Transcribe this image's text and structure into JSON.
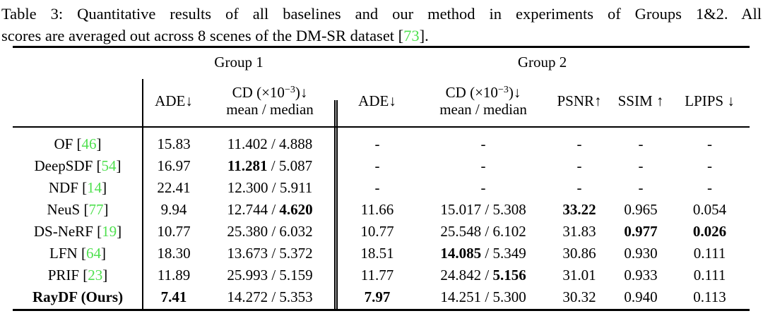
{
  "caption": {
    "line1": "Table 3: Quantitative results of all baselines and our method in experiments of Groups 1&2. All",
    "line2_prefix": "scores are averaged out across 8 scenes of the DM-SR dataset [",
    "cite": "73",
    "line2_suffix": "]."
  },
  "colors": {
    "citation_green": "#50e050",
    "text_black": "#000000"
  },
  "table": {
    "groups": [
      "Group 1",
      "Group 2"
    ],
    "headers": {
      "ade": "ADE↓",
      "cd_line1_prefix": "CD (×10",
      "cd_sup": "−3",
      "cd_line1_suffix": ")↓",
      "cd_line2": "mean / median",
      "psnr": "PSNR↑",
      "ssim": "SSIM ↑",
      "lpips": "LPIPS ↓"
    },
    "columns": [
      "ade1",
      "cd1",
      "ade2",
      "cd2",
      "psnr",
      "ssim",
      "lpips"
    ],
    "rows": [
      {
        "method": {
          "name": "OF",
          "cite": "46",
          "bold": false
        },
        "cells": {
          "ade1": [
            {
              "t": "15.83"
            }
          ],
          "cd1": [
            {
              "t": "11.402"
            },
            {
              "t": " / "
            },
            {
              "t": "4.888"
            }
          ],
          "ade2": [
            {
              "t": "-"
            }
          ],
          "cd2": [
            {
              "t": "-"
            }
          ],
          "psnr": [
            {
              "t": "-"
            }
          ],
          "ssim": [
            {
              "t": "-"
            }
          ],
          "lpips": [
            {
              "t": "-"
            }
          ]
        }
      },
      {
        "method": {
          "name": "DeepSDF",
          "cite": "54",
          "bold": false
        },
        "cells": {
          "ade1": [
            {
              "t": "16.97"
            }
          ],
          "cd1": [
            {
              "t": "11.281",
              "b": true
            },
            {
              "t": " / "
            },
            {
              "t": "5.087"
            }
          ],
          "ade2": [
            {
              "t": "-"
            }
          ],
          "cd2": [
            {
              "t": "-"
            }
          ],
          "psnr": [
            {
              "t": "-"
            }
          ],
          "ssim": [
            {
              "t": "-"
            }
          ],
          "lpips": [
            {
              "t": "-"
            }
          ]
        }
      },
      {
        "method": {
          "name": "NDF",
          "cite": "14",
          "bold": false
        },
        "cells": {
          "ade1": [
            {
              "t": "22.41"
            }
          ],
          "cd1": [
            {
              "t": "12.300"
            },
            {
              "t": " / "
            },
            {
              "t": "5.911"
            }
          ],
          "ade2": [
            {
              "t": "-"
            }
          ],
          "cd2": [
            {
              "t": "-"
            }
          ],
          "psnr": [
            {
              "t": "-"
            }
          ],
          "ssim": [
            {
              "t": "-"
            }
          ],
          "lpips": [
            {
              "t": "-"
            }
          ]
        }
      },
      {
        "method": {
          "name": "NeuS",
          "cite": "77",
          "bold": false
        },
        "cells": {
          "ade1": [
            {
              "t": "9.94"
            }
          ],
          "cd1": [
            {
              "t": "12.744"
            },
            {
              "t": " / "
            },
            {
              "t": "4.620",
              "b": true
            }
          ],
          "ade2": [
            {
              "t": "11.66"
            }
          ],
          "cd2": [
            {
              "t": "15.017"
            },
            {
              "t": " / "
            },
            {
              "t": "5.308"
            }
          ],
          "psnr": [
            {
              "t": "33.22",
              "b": true
            }
          ],
          "ssim": [
            {
              "t": "0.965"
            }
          ],
          "lpips": [
            {
              "t": "0.054"
            }
          ]
        }
      },
      {
        "method": {
          "name": "DS-NeRF",
          "cite": "19",
          "bold": false
        },
        "cells": {
          "ade1": [
            {
              "t": "10.77"
            }
          ],
          "cd1": [
            {
              "t": "25.380"
            },
            {
              "t": " / "
            },
            {
              "t": "6.032"
            }
          ],
          "ade2": [
            {
              "t": "10.77"
            }
          ],
          "cd2": [
            {
              "t": "25.548"
            },
            {
              "t": " / "
            },
            {
              "t": "6.102"
            }
          ],
          "psnr": [
            {
              "t": "31.83"
            }
          ],
          "ssim": [
            {
              "t": "0.977",
              "b": true
            }
          ],
          "lpips": [
            {
              "t": "0.026",
              "b": true
            }
          ]
        }
      },
      {
        "method": {
          "name": "LFN",
          "cite": "64",
          "bold": false
        },
        "cells": {
          "ade1": [
            {
              "t": "18.30"
            }
          ],
          "cd1": [
            {
              "t": "13.673"
            },
            {
              "t": " / "
            },
            {
              "t": "5.372"
            }
          ],
          "ade2": [
            {
              "t": "18.51"
            }
          ],
          "cd2": [
            {
              "t": "14.085",
              "b": true
            },
            {
              "t": " / "
            },
            {
              "t": "5.349"
            }
          ],
          "psnr": [
            {
              "t": "30.86"
            }
          ],
          "ssim": [
            {
              "t": "0.930"
            }
          ],
          "lpips": [
            {
              "t": "0.111"
            }
          ]
        }
      },
      {
        "method": {
          "name": "PRIF",
          "cite": "23",
          "bold": false
        },
        "cells": {
          "ade1": [
            {
              "t": "11.89"
            }
          ],
          "cd1": [
            {
              "t": "25.993"
            },
            {
              "t": " / "
            },
            {
              "t": "5.159"
            }
          ],
          "ade2": [
            {
              "t": "11.77"
            }
          ],
          "cd2": [
            {
              "t": "24.842"
            },
            {
              "t": " / "
            },
            {
              "t": "5.156",
              "b": true
            }
          ],
          "psnr": [
            {
              "t": "31.01"
            }
          ],
          "ssim": [
            {
              "t": "0.933"
            }
          ],
          "lpips": [
            {
              "t": "0.111"
            }
          ]
        }
      },
      {
        "method": {
          "name": "RayDF (Ours)",
          "cite": "",
          "bold": true
        },
        "cells": {
          "ade1": [
            {
              "t": "7.41",
              "b": true
            }
          ],
          "cd1": [
            {
              "t": "14.272"
            },
            {
              "t": " / "
            },
            {
              "t": "5.353"
            }
          ],
          "ade2": [
            {
              "t": "7.97",
              "b": true
            }
          ],
          "cd2": [
            {
              "t": "14.251"
            },
            {
              "t": " / "
            },
            {
              "t": "5.300"
            }
          ],
          "psnr": [
            {
              "t": "30.32"
            }
          ],
          "ssim": [
            {
              "t": "0.940"
            }
          ],
          "lpips": [
            {
              "t": "0.113"
            }
          ]
        }
      }
    ]
  }
}
